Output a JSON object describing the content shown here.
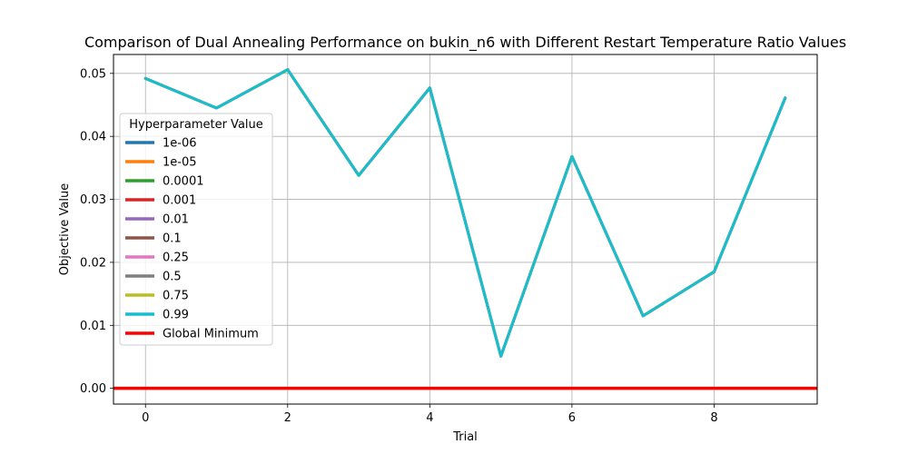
{
  "chart_data": {
    "type": "line",
    "title": "Comparison of Dual Annealing Performance on bukin_n6 with Different Restart Temperature Ratio Values",
    "xlabel": "Trial",
    "ylabel": "Objective Value",
    "xlim": [
      -0.45,
      9.45
    ],
    "ylim": [
      -0.0025,
      0.053
    ],
    "x_ticks": [
      0,
      2,
      4,
      6,
      8
    ],
    "y_ticks": [
      0.0,
      0.01,
      0.02,
      0.03,
      0.04,
      0.05
    ],
    "y_tick_labels": [
      "0.00",
      "0.01",
      "0.02",
      "0.03",
      "0.04",
      "0.05"
    ],
    "grid": true,
    "legend_title": "Hyperparameter Value",
    "legend_position": "center-left",
    "x": [
      0,
      1,
      2,
      3,
      4,
      5,
      6,
      7,
      8,
      9
    ],
    "series": [
      {
        "name": "1e-06",
        "color": "#1f77b4",
        "values": [
          0.0492,
          0.0445,
          0.0506,
          0.0338,
          0.0477,
          0.0051,
          0.0368,
          0.0115,
          0.0185,
          0.0461
        ]
      },
      {
        "name": "1e-05",
        "color": "#ff7f0e",
        "values": [
          0.0492,
          0.0445,
          0.0506,
          0.0338,
          0.0477,
          0.0051,
          0.0368,
          0.0115,
          0.0185,
          0.0461
        ]
      },
      {
        "name": "0.0001",
        "color": "#2ca02c",
        "values": [
          0.0492,
          0.0445,
          0.0506,
          0.0338,
          0.0477,
          0.0051,
          0.0368,
          0.0115,
          0.0185,
          0.0461
        ]
      },
      {
        "name": "0.001",
        "color": "#d62728",
        "values": [
          0.0492,
          0.0445,
          0.0506,
          0.0338,
          0.0477,
          0.0051,
          0.0368,
          0.0115,
          0.0185,
          0.0461
        ]
      },
      {
        "name": "0.01",
        "color": "#9467bd",
        "values": [
          0.0492,
          0.0445,
          0.0506,
          0.0338,
          0.0477,
          0.0051,
          0.0368,
          0.0115,
          0.0185,
          0.0461
        ]
      },
      {
        "name": "0.1",
        "color": "#8c564b",
        "values": [
          0.0492,
          0.0445,
          0.0506,
          0.0338,
          0.0477,
          0.0051,
          0.0368,
          0.0115,
          0.0185,
          0.0461
        ]
      },
      {
        "name": "0.25",
        "color": "#e377c2",
        "values": [
          0.0492,
          0.0445,
          0.0506,
          0.0338,
          0.0477,
          0.0051,
          0.0368,
          0.0115,
          0.0185,
          0.0461
        ]
      },
      {
        "name": "0.5",
        "color": "#7f7f7f",
        "values": [
          0.0492,
          0.0445,
          0.0506,
          0.0338,
          0.0477,
          0.0051,
          0.0368,
          0.0115,
          0.0185,
          0.0461
        ]
      },
      {
        "name": "0.75",
        "color": "#bcbd22",
        "values": [
          0.0492,
          0.0445,
          0.0506,
          0.0338,
          0.0477,
          0.0051,
          0.0368,
          0.0115,
          0.0185,
          0.0461
        ]
      },
      {
        "name": "0.99",
        "color": "#17becf",
        "values": [
          0.0492,
          0.0445,
          0.0506,
          0.0338,
          0.0477,
          0.0051,
          0.0368,
          0.0115,
          0.0185,
          0.0461
        ]
      }
    ],
    "reference_line": {
      "name": "Global Minimum",
      "color": "#ff0000",
      "y": 0.0
    }
  }
}
